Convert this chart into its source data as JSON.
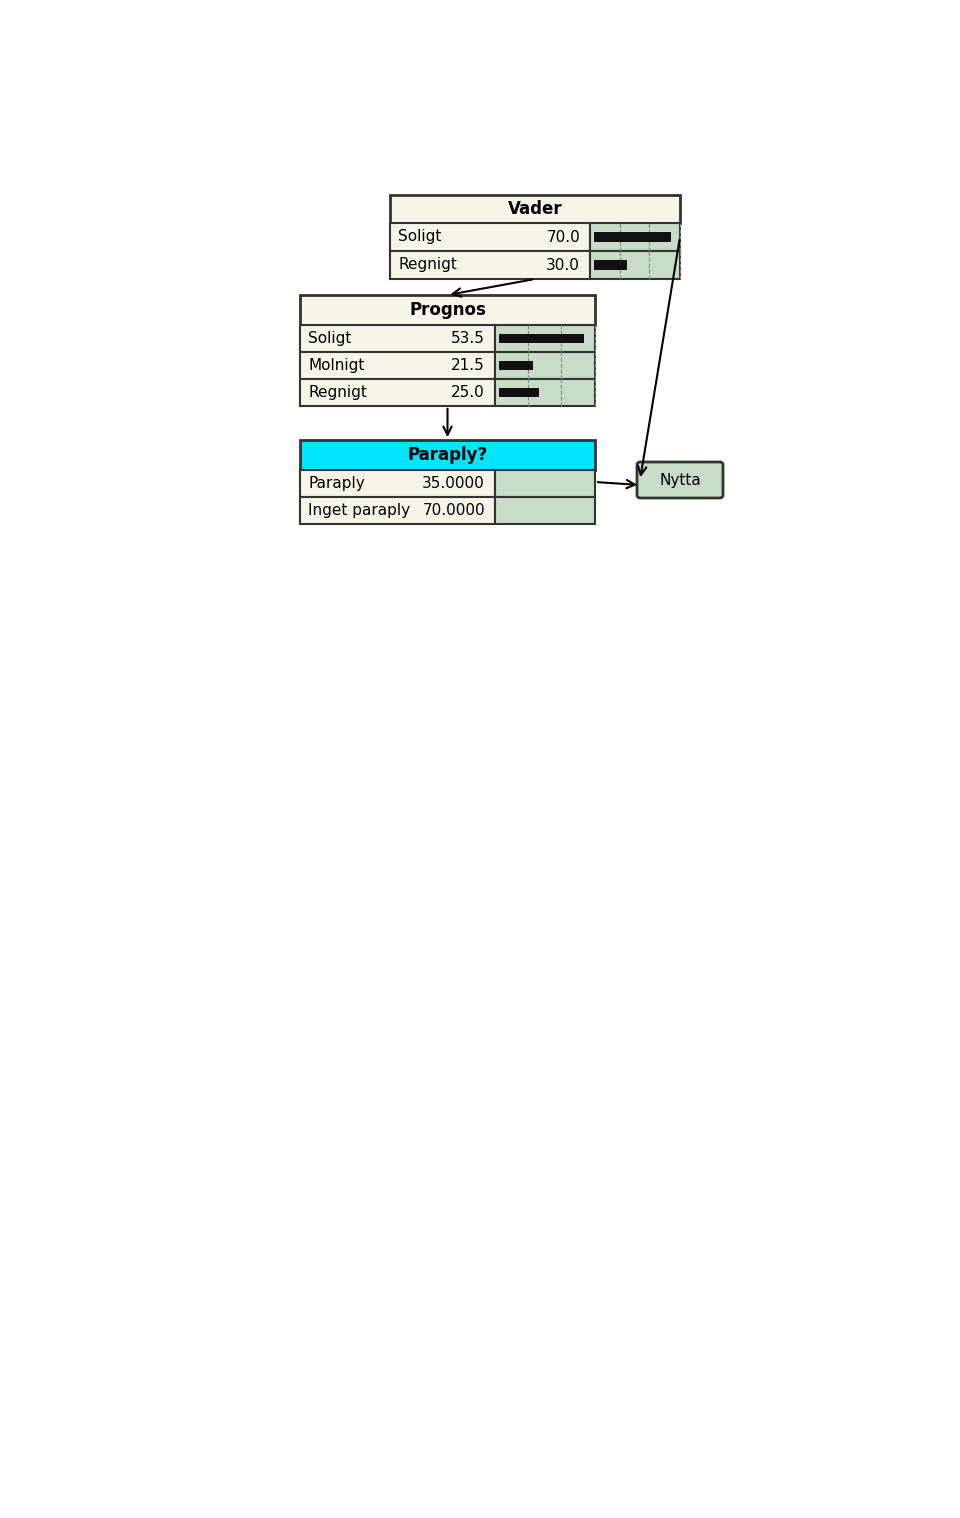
{
  "vader_title": "Vader",
  "vader_rows": [
    {
      "label": "Soligt",
      "value": "70.0"
    },
    {
      "label": "Regnigt",
      "value": "30.0"
    }
  ],
  "prognos_title": "Prognos",
  "prognos_rows": [
    {
      "label": "Soligt",
      "value": "53.5"
    },
    {
      "label": "Molnigt",
      "value": "21.5"
    },
    {
      "label": "Regnigt",
      "value": "25.0"
    }
  ],
  "paraply_title": "Paraply?",
  "paraply_rows": [
    {
      "label": "Paraply",
      "value": "35.0000"
    },
    {
      "label": "Inget paraply",
      "value": "70.0000"
    }
  ],
  "nytta_label": "Nytta",
  "vader_bg": "#f5f5e8",
  "vader_header_bg": "#f5f5e8",
  "vader_bar_bg": "#c8dcc8",
  "prognos_bg": "#f5f5e8",
  "prognos_header_bg": "#f5f5e8",
  "prognos_bar_bg": "#c8dcc8",
  "paraply_header_bg": "#00e5ff",
  "paraply_body_bg": "#f5f5e8",
  "paraply_bar_bg": "#c8dcc8",
  "nytta_bg": "#c8dcc8",
  "border_color": "#333333",
  "bar_color": "#111111",
  "dashed_color": "#888888",
  "page_bg": "#ffffff",
  "text_color": "#000000",
  "vader_bar_max": 70.0,
  "prognos_bar_max": 53.5,
  "paraply_bar_max": 70.0
}
